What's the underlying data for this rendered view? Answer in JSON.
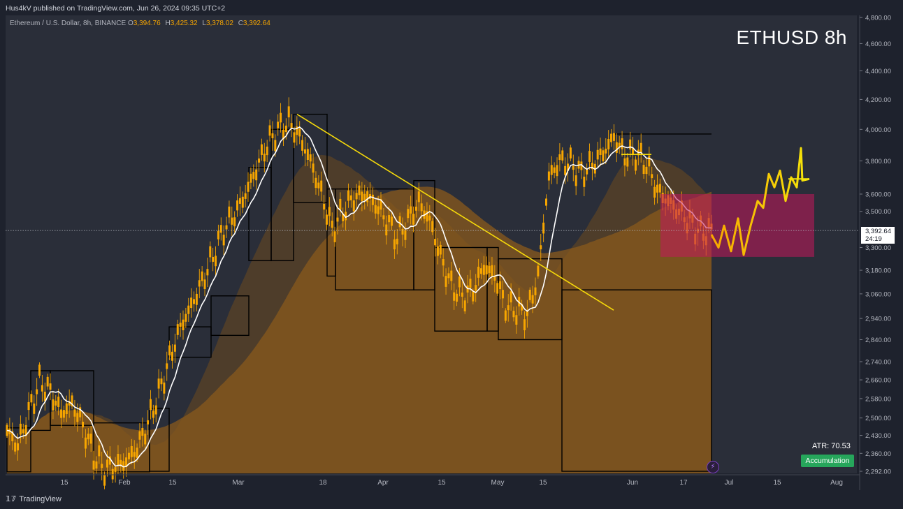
{
  "header": {
    "publisher": "Hus4kV published on TradingView.com, Jun 26, 2024 09:35 UTC+2"
  },
  "symbol": {
    "name": "Ethereum / U.S. Dollar, 8h, BINANCE",
    "o_label": "O",
    "o": "3,394.76",
    "h_label": "H",
    "h": "3,425.32",
    "l_label": "L",
    "l": "3,378.02",
    "c_label": "C",
    "c": "3,392.64"
  },
  "title": "ETHUSD 8h",
  "indicators": {
    "atr": "ATR: 70.53",
    "badge": "Accumulation"
  },
  "price_badge": {
    "price": "3,392.64",
    "countdown": "24:19"
  },
  "footer": {
    "logo": "TradingView"
  },
  "colors": {
    "background": "#1e222d",
    "candle": "#f7a600",
    "trendline": "#f5d90a",
    "zone": "#c2185b",
    "accent_green": "#26a65b"
  },
  "chart_data": {
    "type": "line",
    "scale": "log",
    "y_ticks": [
      "4,800.00",
      "4,600.00",
      "4,400.00",
      "4,200.00",
      "4,000.00",
      "3,800.00",
      "3,600.00",
      "3,500.00",
      "3,300.00",
      "3,180.00",
      "3,060.00",
      "2,940.00",
      "2,840.00",
      "2,740.00",
      "2,660.00",
      "2,580.00",
      "2,500.00",
      "2,430.00",
      "2,360.00",
      "2,292.00"
    ],
    "ylim": [
      2292,
      4800
    ],
    "x_ticks": [
      "15",
      "Feb",
      "15",
      "Mar",
      "18",
      "Apr",
      "15",
      "May",
      "15",
      "Jun",
      "17",
      "Jul",
      "15",
      "Aug"
    ],
    "series": [
      {
        "values": [
          2450,
          2390,
          2520,
          2650,
          2610,
          2520,
          2560,
          2470,
          2350,
          2300,
          2310,
          2330,
          2380,
          2480,
          2600,
          2750,
          2900,
          3000,
          3120,
          3250,
          3400,
          3480,
          3600,
          3750,
          3900,
          4000,
          4050,
          3950,
          3800,
          3600,
          3400,
          3500,
          3580,
          3600,
          3540,
          3450,
          3350,
          3450,
          3550,
          3450,
          3250,
          3100,
          3050,
          3080,
          3200,
          3150,
          3000,
          2980,
          2960,
          3150,
          3700,
          3800,
          3780,
          3720,
          3780,
          3850,
          3950,
          3830,
          3850,
          3780,
          3620,
          3560,
          3500,
          3440,
          3380,
          3392
        ]
      }
    ],
    "annotations": {
      "current_price": 3392.64,
      "zone": {
        "y_low": 3250,
        "y_high": 3600
      },
      "trendline": {
        "from": 4100,
        "to": 2980
      }
    }
  }
}
